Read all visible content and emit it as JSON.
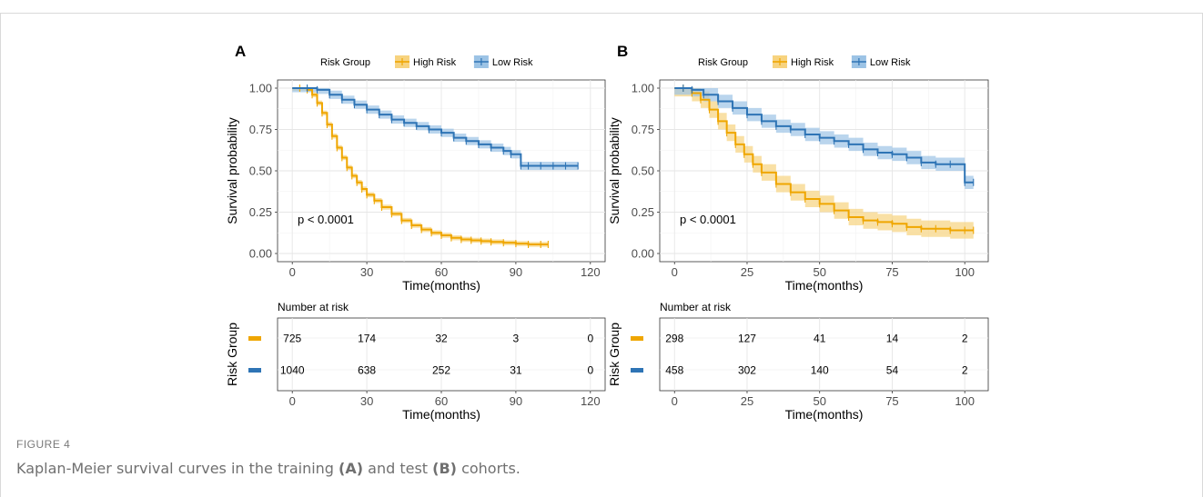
{
  "figure": {
    "label": "FIGURE 4",
    "caption_parts": [
      "Kaplan-Meier survival curves in the training ",
      "(A)",
      " and test ",
      "(B)",
      " cohorts."
    ]
  },
  "colors": {
    "high": "#EFA600",
    "high_fill": "#F7D37F",
    "low": "#2E74B5",
    "low_fill": "#9CC3E5"
  },
  "chart_data": [
    {
      "type": "line",
      "panel_label": "A",
      "legend_title": "Risk Group",
      "legend_placement": "top",
      "xlabel": "Time(months)",
      "ylabel": "Survival probability",
      "xlim": [
        0,
        120
      ],
      "ylim": [
        0,
        1
      ],
      "x_ticks": [
        0,
        30,
        60,
        90,
        120
      ],
      "y_ticks": [
        "0.00",
        "0.25",
        "0.50",
        "0.75",
        "1.00"
      ],
      "grid": true,
      "annotation": "p < 0.0001",
      "series": [
        {
          "name": "High Risk",
          "x": [
            0,
            3,
            6,
            8,
            10,
            12,
            14,
            16,
            18,
            20,
            22,
            24,
            26,
            28,
            30,
            33,
            36,
            40,
            44,
            48,
            52,
            56,
            60,
            64,
            68,
            72,
            76,
            80,
            85,
            90,
            95,
            100,
            103
          ],
          "y": [
            1.0,
            1.0,
            0.99,
            0.96,
            0.91,
            0.85,
            0.78,
            0.71,
            0.64,
            0.58,
            0.52,
            0.47,
            0.43,
            0.39,
            0.355,
            0.32,
            0.28,
            0.24,
            0.2,
            0.17,
            0.145,
            0.125,
            0.11,
            0.095,
            0.085,
            0.08,
            0.075,
            0.07,
            0.065,
            0.06,
            0.055,
            0.055,
            0.055
          ],
          "ci_width": 0.015
        },
        {
          "name": "Low Risk",
          "x": [
            0,
            6,
            10,
            15,
            20,
            25,
            30,
            35,
            40,
            45,
            50,
            55,
            60,
            65,
            70,
            75,
            80,
            85,
            88,
            92,
            95,
            100,
            105,
            110,
            115
          ],
          "y": [
            1.0,
            1.0,
            0.99,
            0.96,
            0.93,
            0.9,
            0.87,
            0.84,
            0.81,
            0.79,
            0.77,
            0.75,
            0.73,
            0.7,
            0.68,
            0.66,
            0.64,
            0.62,
            0.6,
            0.53,
            0.53,
            0.53,
            0.53,
            0.53,
            0.53
          ],
          "ci_width": 0.025
        }
      ],
      "risk_table": {
        "title": "Number at risk",
        "ylabel": "Risk Group",
        "xlabel": "Time(months)",
        "times": [
          0,
          30,
          60,
          90,
          120
        ],
        "rows": [
          {
            "group": "High Risk",
            "values": [
              "725",
              "174",
              "32",
              "3",
              "0"
            ]
          },
          {
            "group": "Low Risk",
            "values": [
              "1040",
              "638",
              "252",
              "31",
              "0"
            ]
          }
        ]
      }
    },
    {
      "type": "line",
      "panel_label": "B",
      "legend_title": "Risk Group",
      "legend_placement": "top",
      "xlabel": "Time(months)",
      "ylabel": "Survival probability",
      "xlim": [
        0,
        103
      ],
      "ylim": [
        0,
        1
      ],
      "x_ticks": [
        0,
        25,
        50,
        75,
        100
      ],
      "y_ticks": [
        "0.00",
        "0.25",
        "0.50",
        "0.75",
        "1.00"
      ],
      "grid": true,
      "annotation": "p < 0.0001",
      "series": [
        {
          "name": "High Risk",
          "x": [
            0,
            3,
            6,
            9,
            12,
            15,
            18,
            21,
            24,
            27,
            30,
            35,
            40,
            45,
            50,
            55,
            60,
            65,
            70,
            75,
            80,
            85,
            90,
            95,
            100,
            103
          ],
          "y": [
            1.0,
            1.0,
            0.97,
            0.93,
            0.87,
            0.8,
            0.73,
            0.66,
            0.6,
            0.54,
            0.49,
            0.42,
            0.37,
            0.33,
            0.3,
            0.26,
            0.22,
            0.2,
            0.19,
            0.18,
            0.16,
            0.15,
            0.15,
            0.14,
            0.14,
            0.14
          ],
          "ci_width": 0.05
        },
        {
          "name": "Low Risk",
          "x": [
            0,
            3,
            6,
            10,
            15,
            20,
            25,
            30,
            35,
            40,
            45,
            50,
            55,
            60,
            65,
            70,
            75,
            80,
            85,
            90,
            95,
            100,
            103
          ],
          "y": [
            1.0,
            1.0,
            0.99,
            0.96,
            0.92,
            0.88,
            0.84,
            0.8,
            0.77,
            0.75,
            0.72,
            0.7,
            0.68,
            0.66,
            0.63,
            0.61,
            0.6,
            0.58,
            0.55,
            0.54,
            0.54,
            0.43,
            0.43
          ],
          "ci_width": 0.04
        }
      ],
      "risk_table": {
        "title": "Number at risk",
        "ylabel": "Risk Group",
        "xlabel": "Time(months)",
        "times": [
          0,
          25,
          50,
          75,
          100
        ],
        "rows": [
          {
            "group": "High Risk",
            "values": [
              "298",
              "127",
              "41",
              "14",
              "2"
            ]
          },
          {
            "group": "Low Risk",
            "values": [
              "458",
              "302",
              "140",
              "54",
              "2"
            ]
          }
        ]
      }
    }
  ]
}
